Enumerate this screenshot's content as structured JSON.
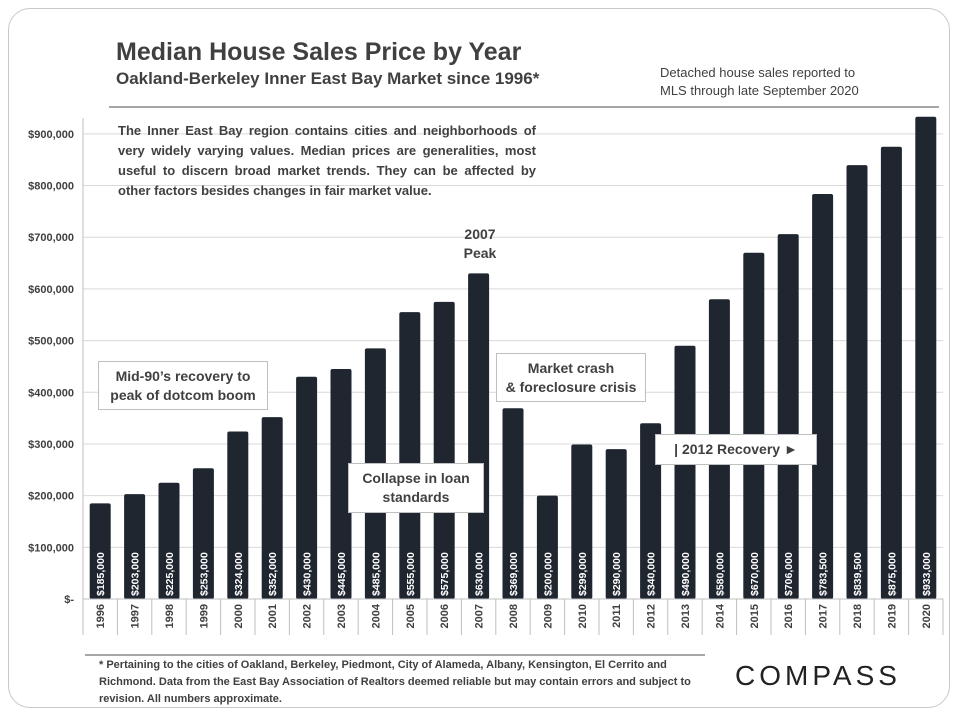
{
  "header": {
    "title": "Median House Sales Price by Year",
    "subtitle": "Oakland-Berkeley  Inner East Bay Market  since 1996*",
    "note_line1": "Detached house sales reported to",
    "note_line2": "MLS through late September 2020"
  },
  "intro_text": "The Inner East Bay region contains cities and neighborhoods of very widely varying values. Median prices are generalities, most useful to discern broad market trends. They can be affected by other factors besides changes in fair market value.",
  "annotations": {
    "mid90_line1": "Mid-90’s recovery to",
    "mid90_line2": "peak of dotcom boom",
    "collapse_line1": "Collapse in loan",
    "collapse_line2": "standards",
    "peak_line1": "2007",
    "peak_line2": "Peak",
    "crash_line1": "Market crash",
    "crash_line2": "& foreclosure crisis",
    "recovery": "| 2012 Recovery ►"
  },
  "footnote": "* Pertaining to the cities of Oakland, Berkeley, Piedmont, City of Alameda, Albany, Kensington, El Cerrito and Richmond. Data from the East Bay Association of Realtors deemed reliable but may contain errors and subject to revision. All numbers approximate.",
  "logo": "COMPASS",
  "colors": {
    "bar": "#1f2630",
    "bar_label": "#ffffff",
    "grid": "#d9d9d9",
    "text": "#404040"
  },
  "chart_data": {
    "type": "bar",
    "title": "Median House Sales Price by Year",
    "categories": [
      "1996",
      "1997",
      "1998",
      "1999",
      "2000",
      "2001",
      "2002",
      "2003",
      "2004",
      "2005",
      "2006",
      "2007",
      "2008",
      "2009",
      "2010",
      "2011",
      "2012",
      "2013",
      "2014",
      "2015",
      "2016",
      "2017",
      "2018",
      "2019",
      "2020"
    ],
    "values": [
      185000,
      203000,
      225000,
      253000,
      324000,
      352000,
      430000,
      445000,
      485000,
      555000,
      575000,
      630000,
      369000,
      200000,
      299000,
      290000,
      340000,
      490000,
      580000,
      670000,
      706000,
      783500,
      839500,
      875000,
      933000
    ],
    "value_labels": [
      "$185,000",
      "$203,000",
      "$225,000",
      "$253,000",
      "$324,000",
      "$352,000",
      "$430,000",
      "$445,000",
      "$485,000",
      "$555,000",
      "$575,000",
      "$630,000",
      "$369,000",
      "$200,000",
      "$299,000",
      "$290,000",
      "$340,000",
      "$490,000",
      "$580,000",
      "$670,000",
      "$706,000",
      "$783,500",
      "$839,500",
      "$875,000",
      "$933,000"
    ],
    "ylim": [
      0,
      950000
    ],
    "yticks": [
      0,
      100000,
      200000,
      300000,
      400000,
      500000,
      600000,
      700000,
      800000,
      900000
    ],
    "ytick_labels": [
      "$-",
      "$100,000",
      "$200,000",
      "$300,000",
      "$400,000",
      "$500,000",
      "$600,000",
      "$700,000",
      "$800,000",
      "$900,000"
    ],
    "grid": true,
    "legend": "none"
  }
}
